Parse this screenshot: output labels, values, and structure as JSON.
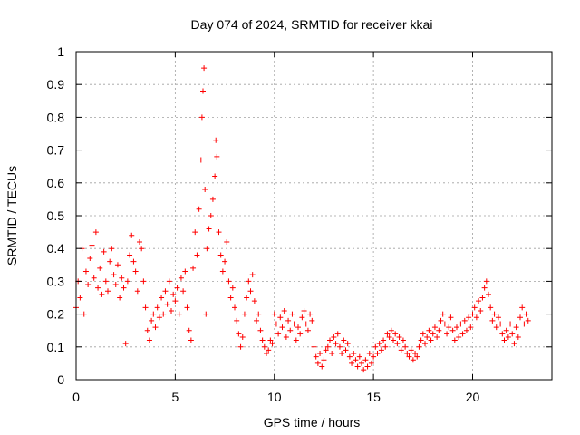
{
  "chart_data": {
    "type": "scatter",
    "title": "Day 074 of 2024, SRMTID for receiver kkai",
    "xlabel": "GPS time / hours",
    "ylabel": "SRMTID / TECUs",
    "xlim": [
      0,
      24.0
    ],
    "ylim": [
      0,
      1
    ],
    "xticks": [
      0,
      5,
      10,
      15,
      20
    ],
    "xtick_labels": [
      "0",
      "5",
      "10",
      "15",
      "20"
    ],
    "yticks": [
      0,
      0.1,
      0.2,
      0.3,
      0.4,
      0.5,
      0.6,
      0.7,
      0.8,
      0.9,
      1
    ],
    "ytick_labels": [
      "0",
      "0.1",
      "0.2",
      "0.3",
      "0.4",
      "0.5",
      "0.6",
      "0.7",
      "0.8",
      "0.9",
      "1"
    ],
    "grid": true,
    "marker": "+",
    "color": "#ff0000",
    "series": [
      {
        "name": "SRMTID",
        "points": [
          [
            0.0,
            0.22
          ],
          [
            0.1,
            0.3
          ],
          [
            0.2,
            0.25
          ],
          [
            0.3,
            0.4
          ],
          [
            0.4,
            0.2
          ],
          [
            0.5,
            0.33
          ],
          [
            0.6,
            0.29
          ],
          [
            0.7,
            0.37
          ],
          [
            0.8,
            0.41
          ],
          [
            0.9,
            0.31
          ],
          [
            1.0,
            0.45
          ],
          [
            1.1,
            0.28
          ],
          [
            1.2,
            0.34
          ],
          [
            1.3,
            0.26
          ],
          [
            1.4,
            0.39
          ],
          [
            1.5,
            0.3
          ],
          [
            1.6,
            0.27
          ],
          [
            1.7,
            0.36
          ],
          [
            1.8,
            0.4
          ],
          [
            1.9,
            0.32
          ],
          [
            2.0,
            0.29
          ],
          [
            2.1,
            0.35
          ],
          [
            2.2,
            0.25
          ],
          [
            2.3,
            0.31
          ],
          [
            2.4,
            0.28
          ],
          [
            2.5,
            0.11
          ],
          [
            2.6,
            0.3
          ],
          [
            2.7,
            0.38
          ],
          [
            2.8,
            0.44
          ],
          [
            2.9,
            0.36
          ],
          [
            3.0,
            0.33
          ],
          [
            3.1,
            0.27
          ],
          [
            3.2,
            0.42
          ],
          [
            3.3,
            0.4
          ],
          [
            3.4,
            0.3
          ],
          [
            3.5,
            0.22
          ],
          [
            3.6,
            0.15
          ],
          [
            3.7,
            0.12
          ],
          [
            3.8,
            0.18
          ],
          [
            3.9,
            0.2
          ],
          [
            4.0,
            0.16
          ],
          [
            4.1,
            0.22
          ],
          [
            4.2,
            0.19
          ],
          [
            4.3,
            0.25
          ],
          [
            4.4,
            0.2
          ],
          [
            4.5,
            0.27
          ],
          [
            4.6,
            0.23
          ],
          [
            4.7,
            0.3
          ],
          [
            4.8,
            0.21
          ],
          [
            4.9,
            0.26
          ],
          [
            5.0,
            0.24
          ],
          [
            5.1,
            0.28
          ],
          [
            5.2,
            0.2
          ],
          [
            5.3,
            0.31
          ],
          [
            5.4,
            0.27
          ],
          [
            5.5,
            0.33
          ],
          [
            5.6,
            0.22
          ],
          [
            5.7,
            0.15
          ],
          [
            5.8,
            0.12
          ],
          [
            5.9,
            0.34
          ],
          [
            6.0,
            0.45
          ],
          [
            6.1,
            0.38
          ],
          [
            6.2,
            0.52
          ],
          [
            6.3,
            0.67
          ],
          [
            6.35,
            0.8
          ],
          [
            6.4,
            0.88
          ],
          [
            6.45,
            0.95
          ],
          [
            6.5,
            0.58
          ],
          [
            6.55,
            0.2
          ],
          [
            6.6,
            0.4
          ],
          [
            6.7,
            0.46
          ],
          [
            6.8,
            0.5
          ],
          [
            6.9,
            0.55
          ],
          [
            7.0,
            0.62
          ],
          [
            7.05,
            0.73
          ],
          [
            7.1,
            0.68
          ],
          [
            7.2,
            0.45
          ],
          [
            7.3,
            0.38
          ],
          [
            7.4,
            0.33
          ],
          [
            7.5,
            0.36
          ],
          [
            7.6,
            0.42
          ],
          [
            7.7,
            0.3
          ],
          [
            7.8,
            0.25
          ],
          [
            7.9,
            0.28
          ],
          [
            8.0,
            0.22
          ],
          [
            8.1,
            0.18
          ],
          [
            8.2,
            0.14
          ],
          [
            8.3,
            0.1
          ],
          [
            8.4,
            0.13
          ],
          [
            8.5,
            0.2
          ],
          [
            8.6,
            0.25
          ],
          [
            8.7,
            0.3
          ],
          [
            8.8,
            0.27
          ],
          [
            8.9,
            0.32
          ],
          [
            9.0,
            0.24
          ],
          [
            9.1,
            0.18
          ],
          [
            9.2,
            0.2
          ],
          [
            9.3,
            0.15
          ],
          [
            9.4,
            0.12
          ],
          [
            9.5,
            0.1
          ],
          [
            9.6,
            0.08
          ],
          [
            9.7,
            0.09
          ],
          [
            9.8,
            0.12
          ],
          [
            9.9,
            0.11
          ],
          [
            10.0,
            0.2
          ],
          [
            10.1,
            0.17
          ],
          [
            10.2,
            0.14
          ],
          [
            10.3,
            0.19
          ],
          [
            10.4,
            0.16
          ],
          [
            10.5,
            0.21
          ],
          [
            10.6,
            0.13
          ],
          [
            10.7,
            0.18
          ],
          [
            10.8,
            0.15
          ],
          [
            10.9,
            0.2
          ],
          [
            11.0,
            0.17
          ],
          [
            11.1,
            0.12
          ],
          [
            11.2,
            0.16
          ],
          [
            11.3,
            0.14
          ],
          [
            11.4,
            0.19
          ],
          [
            11.5,
            0.21
          ],
          [
            11.6,
            0.17
          ],
          [
            11.7,
            0.15
          ],
          [
            11.8,
            0.2
          ],
          [
            11.9,
            0.18
          ],
          [
            12.0,
            0.1
          ],
          [
            12.1,
            0.07
          ],
          [
            12.2,
            0.05
          ],
          [
            12.3,
            0.08
          ],
          [
            12.4,
            0.04
          ],
          [
            12.5,
            0.06
          ],
          [
            12.6,
            0.09
          ],
          [
            12.7,
            0.1
          ],
          [
            12.8,
            0.12
          ],
          [
            12.9,
            0.08
          ],
          [
            13.0,
            0.13
          ],
          [
            13.1,
            0.11
          ],
          [
            13.2,
            0.14
          ],
          [
            13.3,
            0.1
          ],
          [
            13.4,
            0.08
          ],
          [
            13.5,
            0.12
          ],
          [
            13.6,
            0.09
          ],
          [
            13.7,
            0.11
          ],
          [
            13.8,
            0.07
          ],
          [
            13.9,
            0.05
          ],
          [
            14.0,
            0.08
          ],
          [
            14.1,
            0.06
          ],
          [
            14.2,
            0.04
          ],
          [
            14.3,
            0.07
          ],
          [
            14.4,
            0.05
          ],
          [
            14.5,
            0.03
          ],
          [
            14.6,
            0.06
          ],
          [
            14.7,
            0.04
          ],
          [
            14.8,
            0.08
          ],
          [
            14.9,
            0.05
          ],
          [
            15.0,
            0.07
          ],
          [
            15.1,
            0.1
          ],
          [
            15.2,
            0.08
          ],
          [
            15.3,
            0.11
          ],
          [
            15.4,
            0.09
          ],
          [
            15.5,
            0.12
          ],
          [
            15.6,
            0.1
          ],
          [
            15.7,
            0.14
          ],
          [
            15.8,
            0.13
          ],
          [
            15.9,
            0.15
          ],
          [
            16.0,
            0.12
          ],
          [
            16.1,
            0.14
          ],
          [
            16.2,
            0.11
          ],
          [
            16.3,
            0.13
          ],
          [
            16.4,
            0.09
          ],
          [
            16.5,
            0.12
          ],
          [
            16.6,
            0.1
          ],
          [
            16.7,
            0.08
          ],
          [
            16.8,
            0.07
          ],
          [
            16.9,
            0.09
          ],
          [
            17.0,
            0.06
          ],
          [
            17.1,
            0.08
          ],
          [
            17.2,
            0.07
          ],
          [
            17.3,
            0.1
          ],
          [
            17.4,
            0.12
          ],
          [
            17.5,
            0.14
          ],
          [
            17.6,
            0.11
          ],
          [
            17.7,
            0.13
          ],
          [
            17.8,
            0.15
          ],
          [
            17.9,
            0.12
          ],
          [
            18.0,
            0.14
          ],
          [
            18.1,
            0.16
          ],
          [
            18.2,
            0.13
          ],
          [
            18.3,
            0.15
          ],
          [
            18.4,
            0.18
          ],
          [
            18.5,
            0.2
          ],
          [
            18.6,
            0.17
          ],
          [
            18.7,
            0.14
          ],
          [
            18.8,
            0.16
          ],
          [
            18.9,
            0.19
          ],
          [
            19.0,
            0.15
          ],
          [
            19.1,
            0.12
          ],
          [
            19.2,
            0.16
          ],
          [
            19.3,
            0.13
          ],
          [
            19.4,
            0.17
          ],
          [
            19.5,
            0.14
          ],
          [
            19.6,
            0.18
          ],
          [
            19.7,
            0.15
          ],
          [
            19.8,
            0.19
          ],
          [
            19.9,
            0.16
          ],
          [
            20.0,
            0.2
          ],
          [
            20.1,
            0.22
          ],
          [
            20.2,
            0.19
          ],
          [
            20.3,
            0.24
          ],
          [
            20.4,
            0.21
          ],
          [
            20.5,
            0.25
          ],
          [
            20.6,
            0.28
          ],
          [
            20.7,
            0.3
          ],
          [
            20.8,
            0.26
          ],
          [
            20.9,
            0.22
          ],
          [
            21.0,
            0.18
          ],
          [
            21.1,
            0.2
          ],
          [
            21.2,
            0.16
          ],
          [
            21.3,
            0.19
          ],
          [
            21.4,
            0.17
          ],
          [
            21.5,
            0.14
          ],
          [
            21.6,
            0.12
          ],
          [
            21.7,
            0.15
          ],
          [
            21.8,
            0.13
          ],
          [
            21.9,
            0.17
          ],
          [
            22.0,
            0.14
          ],
          [
            22.1,
            0.11
          ],
          [
            22.2,
            0.16
          ],
          [
            22.3,
            0.13
          ],
          [
            22.4,
            0.19
          ],
          [
            22.5,
            0.22
          ],
          [
            22.6,
            0.17
          ],
          [
            22.7,
            0.2
          ],
          [
            22.8,
            0.18
          ]
        ]
      }
    ]
  }
}
